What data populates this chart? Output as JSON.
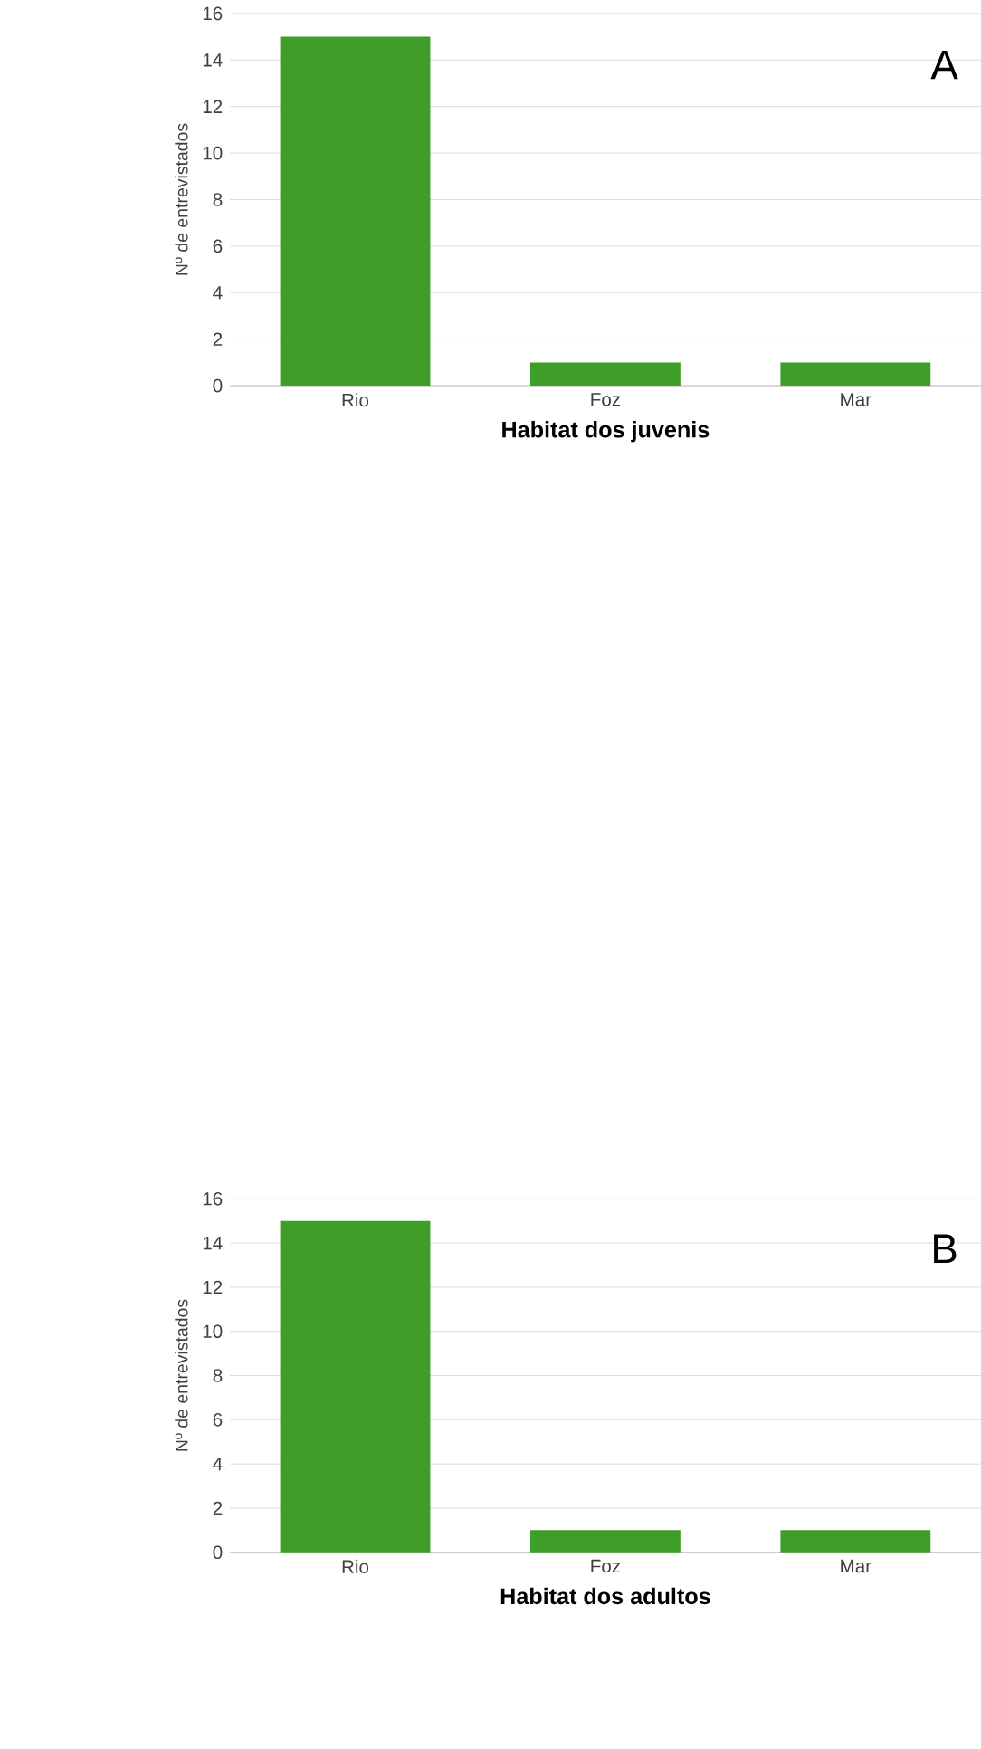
{
  "chart_data": [
    {
      "type": "bar",
      "categories": [
        "Rio",
        "Foz",
        "Mar"
      ],
      "values": [
        15,
        1,
        1
      ],
      "color": "#3f9e27",
      "ylim": [
        0,
        16
      ],
      "yticks": [
        0,
        2,
        4,
        6,
        8,
        10,
        12,
        14,
        16
      ],
      "grid": "y",
      "xlabel": "Habitat dos juvenis",
      "ylabel": "Nº de entrevistados",
      "annotations": [
        "A"
      ]
    },
    {
      "type": "bar",
      "categories": [
        "Rio",
        "Foz",
        "Mar"
      ],
      "values": [
        15,
        1,
        1
      ],
      "color": "#3f9e27",
      "ylim": [
        0,
        16
      ],
      "yticks": [
        0,
        2,
        4,
        6,
        8,
        10,
        12,
        14,
        16
      ],
      "grid": "y",
      "xlabel": "Habitat dos adultos",
      "ylabel": "Nº de entrevistados",
      "annotations": [
        "B"
      ]
    }
  ]
}
